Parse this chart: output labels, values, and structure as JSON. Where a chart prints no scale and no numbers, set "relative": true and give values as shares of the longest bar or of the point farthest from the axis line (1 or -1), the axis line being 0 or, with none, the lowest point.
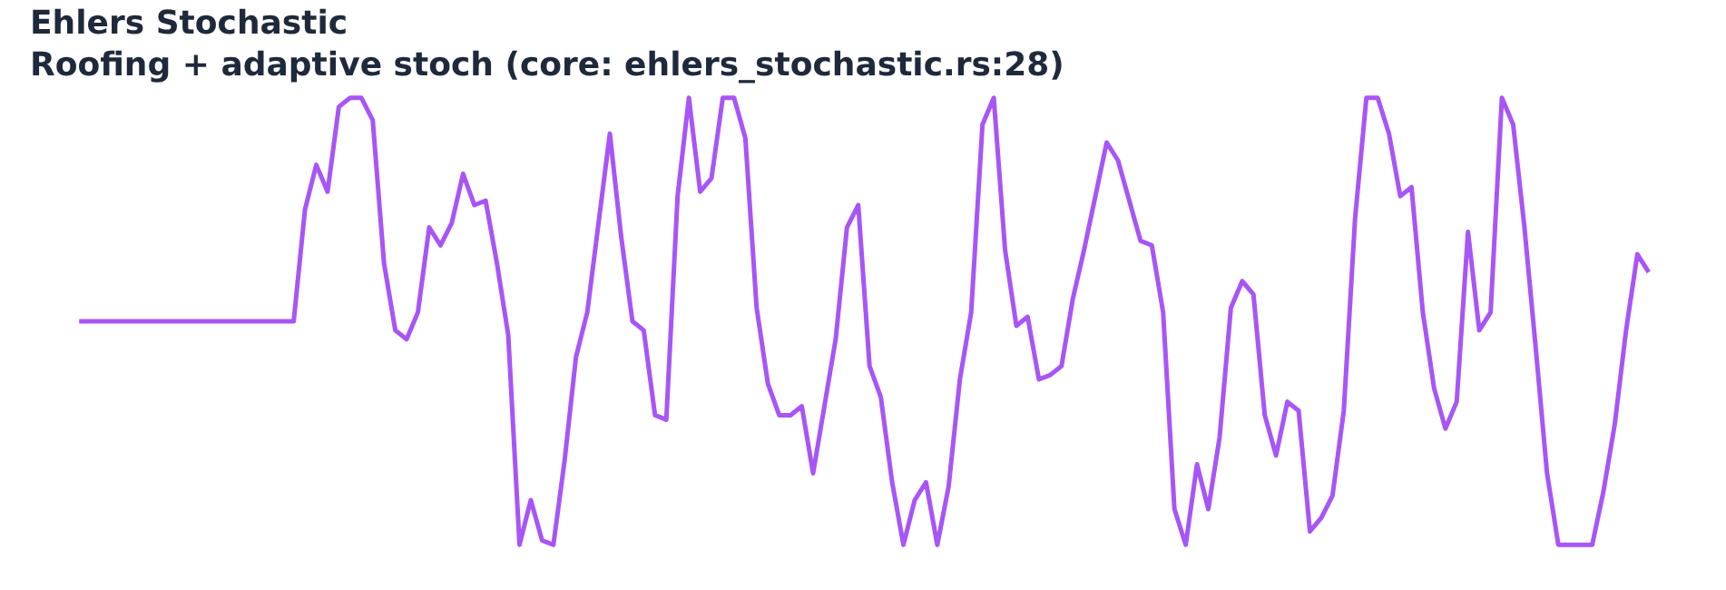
{
  "chart_data": {
    "type": "line",
    "title": "Ehlers Stochastic",
    "subtitle": "Roofing + adaptive stoch (core: ehlers_stochastic.rs:28)",
    "relative": true,
    "grid": false,
    "marker": "none",
    "line_style": "solid",
    "categories": [
      null,
      null,
      null,
      null,
      null,
      null,
      null,
      null,
      null,
      null,
      null,
      null,
      null,
      null,
      null,
      null,
      null,
      null,
      null,
      null,
      null,
      null,
      null,
      null,
      null,
      null,
      null,
      null,
      null,
      null,
      null,
      null,
      null,
      null,
      null,
      null,
      null,
      null,
      null,
      null,
      null,
      null,
      null,
      null,
      null,
      null,
      null,
      null,
      null,
      null,
      null,
      null,
      null,
      null,
      null,
      null,
      null,
      null,
      null,
      null,
      null,
      null,
      null,
      null,
      null,
      null,
      null,
      null,
      null,
      null,
      null,
      null,
      null,
      null,
      null,
      null,
      null,
      null,
      null,
      null,
      null,
      null,
      null,
      null,
      null,
      null,
      null,
      null,
      null,
      null,
      null,
      null,
      null,
      null,
      null,
      null,
      null,
      null,
      null,
      null,
      null,
      null,
      null,
      null,
      null,
      null,
      null,
      null,
      null,
      null,
      null,
      null,
      null,
      null,
      null,
      null,
      null,
      null,
      null,
      null,
      null,
      null,
      null,
      null,
      null,
      null,
      null,
      null,
      null,
      null,
      null,
      null,
      null,
      null,
      null,
      null,
      null,
      null,
      null,
      null
    ],
    "series": [
      {
        "color": "#a855f7",
        "values": [
          0.5,
          0.5,
          0.5,
          0.5,
          0.5,
          0.5,
          0.5,
          0.5,
          0.5,
          0.5,
          0.5,
          0.5,
          0.5,
          0.5,
          0.5,
          0.5,
          0.5,
          0.5,
          0.5,
          0.5,
          0.75,
          0.85,
          0.79,
          0.98,
          1,
          1,
          0.95,
          0.63,
          0.48,
          0.46,
          0.52,
          0.71,
          0.67,
          0.72,
          0.83,
          0.76,
          0.77,
          0.63,
          0.47,
          0,
          0.1,
          0.01,
          0,
          0.19,
          0.42,
          0.52,
          0.72,
          0.92,
          0.69,
          0.5,
          0.48,
          0.29,
          0.28,
          0.78,
          1,
          0.79,
          0.82,
          1,
          1,
          0.91,
          0.53,
          0.36,
          0.29,
          0.29,
          0.31,
          0.16,
          0.31,
          0.46,
          0.71,
          0.76,
          0.4,
          0.33,
          0.14,
          0,
          0.1,
          0.14,
          0,
          0.13,
          0.37,
          0.52,
          0.94,
          1,
          0.66,
          0.49,
          0.51,
          0.37,
          0.38,
          0.4,
          0.55,
          0.66,
          0.78,
          0.9,
          0.86,
          0.77,
          0.68,
          0.67,
          0.52,
          0.08,
          0,
          0.18,
          0.08,
          0.24,
          0.53,
          0.59,
          0.56,
          0.29,
          0.2,
          0.32,
          0.3,
          0.03,
          0.06,
          0.11,
          0.3,
          0.73,
          1,
          1,
          0.92,
          0.78,
          0.8,
          0.52,
          0.35,
          0.26,
          0.32,
          0.7,
          0.48,
          0.52,
          1,
          0.94,
          0.71,
          0.44,
          0.16,
          0,
          0,
          0,
          0,
          0.12,
          0.27,
          0.48,
          0.65,
          0.61
        ]
      }
    ]
  }
}
